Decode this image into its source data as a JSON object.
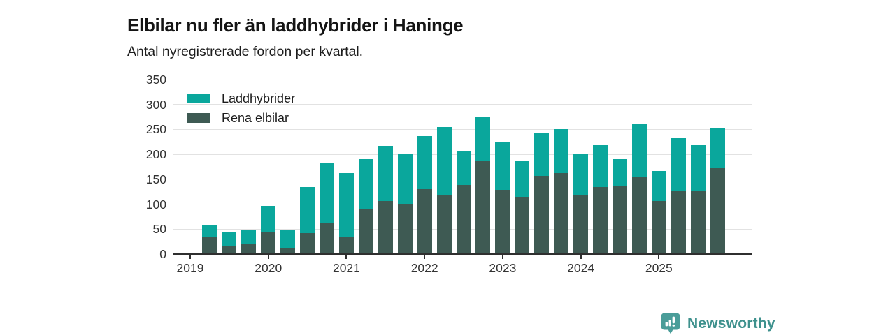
{
  "header": {
    "title": "Elbilar nu fler än laddhybrider i Haninge",
    "subtitle": "Antal nyregistrerade fordon per kvartal."
  },
  "footer": {
    "brand": "Newsworthy",
    "logo_icon": "bar-chart-badge-icon"
  },
  "colors": {
    "laddhybrider": "#0aa79c",
    "rena_elbilar": "#3e5a53",
    "grid": "#e2e2e2",
    "axis": "#2f2f2f",
    "brand_badge": "#4a9d99",
    "brand_text": "#3e918d"
  },
  "chart_data": {
    "type": "bar",
    "stacked": true,
    "stack_bottom_series": "Rena elbilar",
    "title": "Elbilar nu fler än laddhybrider i Haninge",
    "subtitle": "Antal nyregistrerade fordon per kvartal.",
    "xlabel": "",
    "ylabel": "",
    "ylim": [
      0,
      350
    ],
    "yticks": [
      0,
      50,
      100,
      150,
      200,
      250,
      300,
      350
    ],
    "grid": "horizontal",
    "legend_position": "top-left-inside",
    "legend": [
      "Laddhybrider",
      "Rena elbilar"
    ],
    "x_tick_labels": [
      "2019",
      "2020",
      "2021",
      "2022",
      "2023",
      "2024",
      "2025"
    ],
    "categories": [
      "2019 Q2",
      "2019 Q3",
      "2019 Q4",
      "2020 Q1",
      "2020 Q2",
      "2020 Q3",
      "2020 Q4",
      "2021 Q1",
      "2021 Q2",
      "2021 Q3",
      "2021 Q4",
      "2022 Q1",
      "2022 Q2",
      "2022 Q3",
      "2022 Q4",
      "2023 Q1",
      "2023 Q2",
      "2023 Q3",
      "2023 Q4",
      "2024 Q1",
      "2024 Q2",
      "2024 Q3",
      "2024 Q4",
      "2025 Q1",
      "2025 Q2",
      "2025 Q3",
      "2025 Q4"
    ],
    "series": [
      {
        "name": "Laddhybrider",
        "color": "#0aa79c",
        "values": [
          24,
          27,
          26,
          53,
          36,
          93,
          120,
          127,
          99,
          110,
          100,
          106,
          138,
          68,
          89,
          95,
          73,
          85,
          89,
          83,
          84,
          54,
          106,
          60,
          105,
          91,
          81
        ]
      },
      {
        "name": "Rena elbilar",
        "color": "#3e5a53",
        "values": [
          33,
          17,
          21,
          44,
          13,
          42,
          63,
          35,
          91,
          107,
          100,
          130,
          117,
          139,
          186,
          129,
          115,
          157,
          162,
          117,
          135,
          136,
          156,
          106,
          128,
          128,
          173
        ]
      }
    ]
  }
}
